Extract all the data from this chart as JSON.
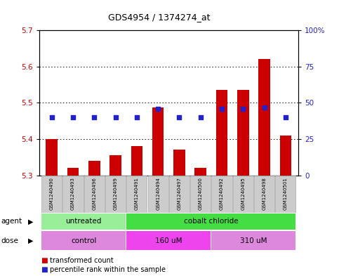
{
  "title": "GDS4954 / 1374274_at",
  "samples": [
    "GSM1240490",
    "GSM1240493",
    "GSM1240496",
    "GSM1240499",
    "GSM1240491",
    "GSM1240494",
    "GSM1240497",
    "GSM1240500",
    "GSM1240492",
    "GSM1240495",
    "GSM1240498",
    "GSM1240501"
  ],
  "bar_values": [
    5.4,
    5.32,
    5.34,
    5.355,
    5.38,
    5.487,
    5.37,
    5.32,
    5.535,
    5.535,
    5.62,
    5.41
  ],
  "bar_base": 5.3,
  "percentile_values": [
    40,
    40,
    40,
    40,
    40,
    46,
    40,
    40,
    46,
    46,
    47,
    40
  ],
  "ylim_left": [
    5.3,
    5.7
  ],
  "ylim_right": [
    0,
    100
  ],
  "yticks_left": [
    5.3,
    5.4,
    5.5,
    5.6,
    5.7
  ],
  "yticks_right": [
    0,
    25,
    50,
    75,
    100
  ],
  "ytick_labels_right": [
    "0",
    "25",
    "50",
    "75",
    "100%"
  ],
  "bar_color": "#cc0000",
  "blue_color": "#2222cc",
  "agent_groups": [
    {
      "label": "untreated",
      "span": [
        0,
        3
      ],
      "color": "#99ee99"
    },
    {
      "label": "cobalt chloride",
      "span": [
        4,
        11
      ],
      "color": "#44dd44"
    }
  ],
  "dose_groups": [
    {
      "label": "control",
      "span": [
        0,
        3
      ],
      "color": "#dd88dd"
    },
    {
      "label": "160 uM",
      "span": [
        4,
        7
      ],
      "color": "#ee44ee"
    },
    {
      "label": "310 uM",
      "span": [
        8,
        11
      ],
      "color": "#dd88dd"
    }
  ],
  "legend_items": [
    {
      "label": "transformed count",
      "color": "#cc0000"
    },
    {
      "label": "percentile rank within the sample",
      "color": "#2222cc"
    }
  ],
  "bar_width": 0.55,
  "background_color": "#ffffff",
  "plot_bg": "#ffffff",
  "ylabel_left_color": "#cc0000",
  "ylabel_right_color": "#2222cc",
  "group_dividers": [
    3.5,
    7.5
  ],
  "label_box_color": "#cccccc",
  "label_box_edge": "#aaaaaa"
}
